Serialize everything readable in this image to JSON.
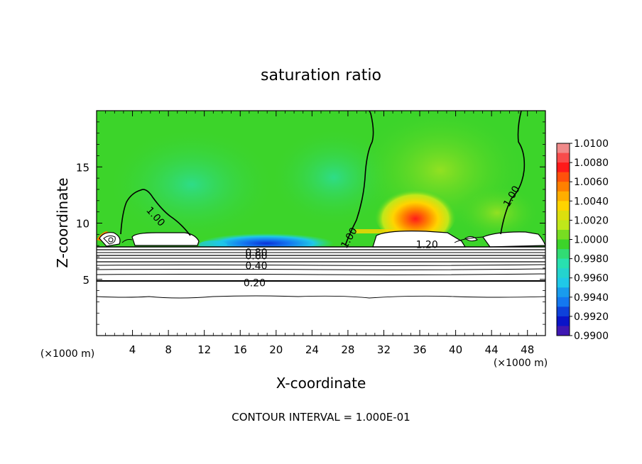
{
  "chart_data": {
    "type": "heatmap",
    "title": "saturation ratio",
    "xlabel": "X-coordinate",
    "ylabel": "Z-coordinate",
    "x_unit_label": "(×1000 m)",
    "x_unit_label_right": "(×1000 m)",
    "xlim": [
      0,
      50
    ],
    "ylim": [
      0,
      20
    ],
    "x_ticks": [
      4,
      8,
      12,
      16,
      20,
      24,
      28,
      32,
      36,
      40,
      44,
      48
    ],
    "y_ticks": [
      5,
      10,
      15
    ],
    "footer": "CONTOUR INTERVAL = 1.000E-01",
    "colorbar": {
      "ticks": [
        "1.0100",
        "1.0080",
        "1.0060",
        "1.0040",
        "1.0020",
        "1.0000",
        "0.9980",
        "0.9960",
        "0.9940",
        "0.9920",
        "0.9900"
      ],
      "colors": [
        "#f08a8a",
        "#ff1a1a",
        "#ff8000",
        "#ffd400",
        "#bfe81a",
        "#3cd42a",
        "#28e0b0",
        "#20c8e8",
        "#1478f0",
        "#0a14c8",
        "#6a1aa0"
      ]
    },
    "contour_labels": [
      {
        "text": "1.00",
        "x": 6.6,
        "z": 10.6,
        "angle": 48
      },
      {
        "text": "1.00",
        "x": 28.1,
        "z": 8.7,
        "angle": -60
      },
      {
        "text": "1.00",
        "x": 46.2,
        "z": 12.4,
        "angle": -60
      },
      {
        "text": "1.20",
        "x": 36.8,
        "z": 8.1,
        "angle": 0
      },
      {
        "text": "0.80",
        "x": 17.8,
        "z": 7.4,
        "angle": 0
      },
      {
        "text": "0.60",
        "x": 17.8,
        "z": 7.1,
        "angle": 0
      },
      {
        "text": "0.40",
        "x": 17.8,
        "z": 6.2,
        "angle": 0
      },
      {
        "text": "0.20",
        "x": 17.6,
        "z": 4.7,
        "angle": 0
      }
    ]
  }
}
